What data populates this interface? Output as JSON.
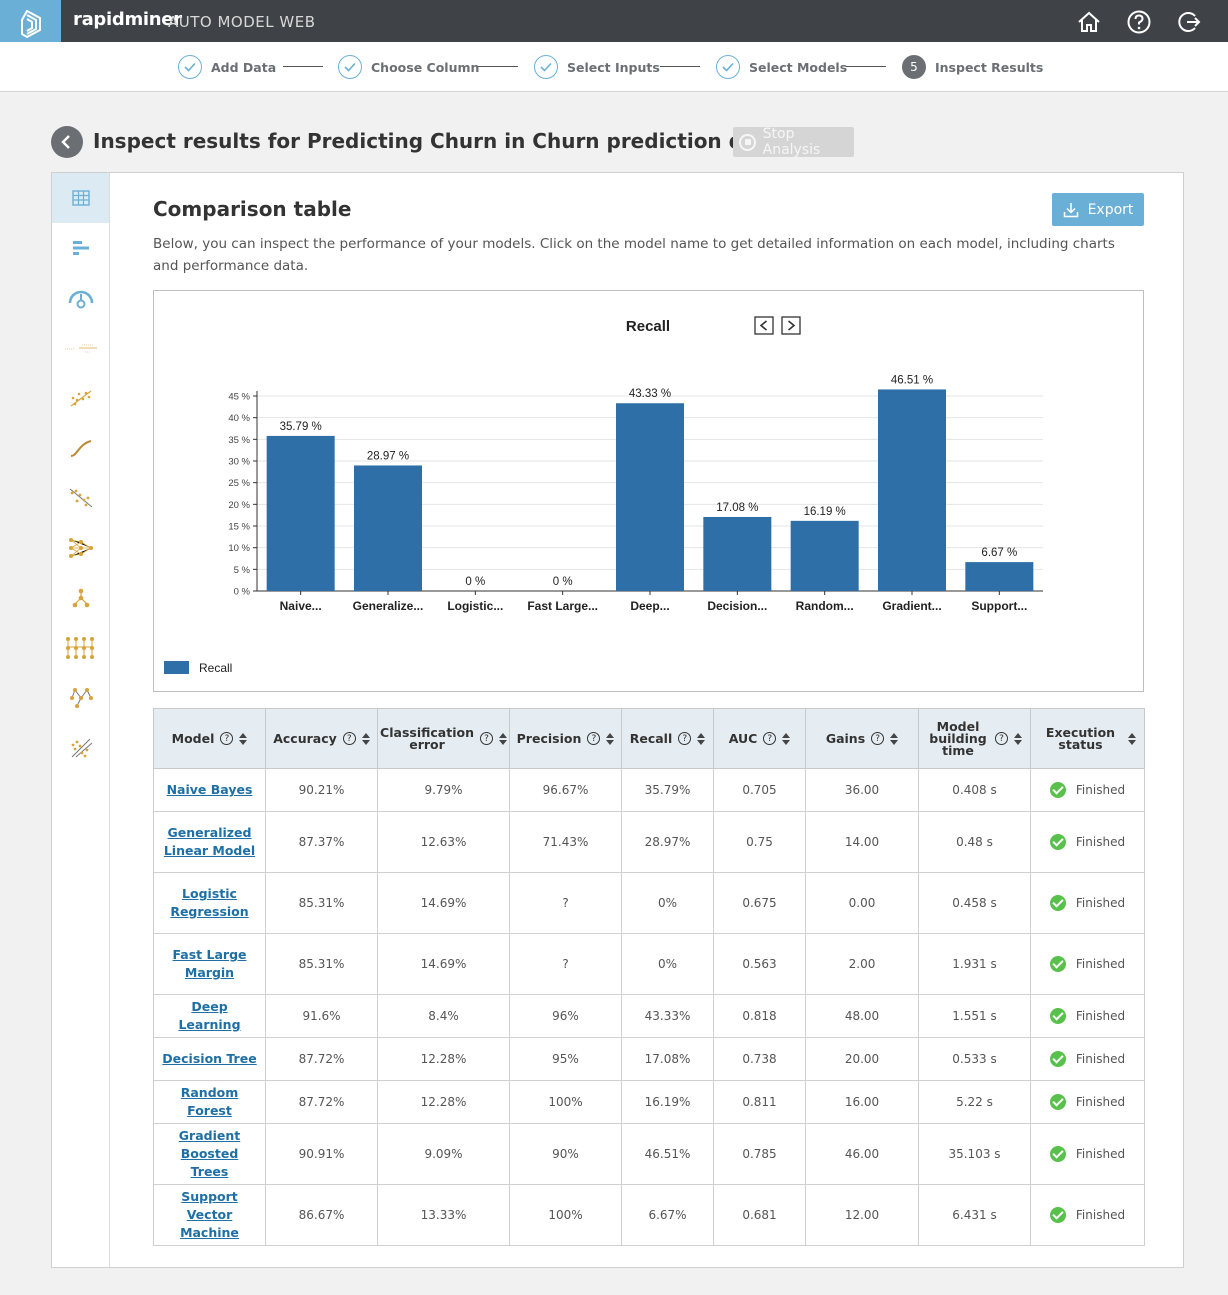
{
  "app": {
    "brand": "rapidminer",
    "product": "AUTO MODEL WEB"
  },
  "stepper": [
    {
      "label": "Add Data",
      "state": "done"
    },
    {
      "label": "Choose Column",
      "state": "done"
    },
    {
      "label": "Select Inputs",
      "state": "done"
    },
    {
      "label": "Select Models",
      "state": "done"
    },
    {
      "label": "Inspect Results",
      "state": "current",
      "number": "5"
    }
  ],
  "page": {
    "title": "Inspect results for Predicting Churn in Churn prediction dat...",
    "stop_label": "Stop Analysis"
  },
  "section": {
    "title": "Comparison table",
    "export_label": "Export",
    "description": "Below, you can inspect the performance of your models. Click on the model name to get detailed information on each model, including charts and performance data."
  },
  "chart_data": {
    "type": "bar",
    "title": "Recall",
    "categories": [
      "Naive...",
      "Generalize...",
      "Logistic...",
      "Fast Large...",
      "Deep...",
      "Decision...",
      "Random...",
      "Gradient...",
      "Support..."
    ],
    "values": [
      35.79,
      28.97,
      0,
      0,
      43.33,
      17.08,
      16.19,
      46.51,
      6.67
    ],
    "value_labels": [
      "35.79 %",
      "28.97 %",
      "0 %",
      "0 %",
      "43.33 %",
      "17.08 %",
      "16.19 %",
      "46.51 %",
      "6.67 %"
    ],
    "yticks": [
      "0 %",
      "5 %",
      "10 %",
      "15 %",
      "20 %",
      "25 %",
      "30 %",
      "35 %",
      "40 %",
      "45 %"
    ],
    "ylim": [
      0,
      45
    ],
    "legend": "Recall",
    "bar_color": "#2f6fa7"
  },
  "table": {
    "headers": [
      {
        "label": "Model",
        "help": true
      },
      {
        "label": "Accuracy",
        "help": true
      },
      {
        "label": "Classification error",
        "help": true
      },
      {
        "label": "Precision",
        "help": true
      },
      {
        "label": "Recall",
        "help": true
      },
      {
        "label": "AUC",
        "help": true
      },
      {
        "label": "Gains",
        "help": true
      },
      {
        "label": "Model building time",
        "help": true
      },
      {
        "label": "Execution status",
        "help": false
      }
    ],
    "rows": [
      {
        "model": "Naive Bayes",
        "accuracy": "90.21%",
        "error": "9.79%",
        "precision": "96.67%",
        "recall": "35.79%",
        "auc": "0.705",
        "gains": "36.00",
        "time": "0.408 s",
        "status": "Finished",
        "tall": false
      },
      {
        "model": "Generalized Linear Model",
        "accuracy": "87.37%",
        "error": "12.63%",
        "precision": "71.43%",
        "recall": "28.97%",
        "auc": "0.75",
        "gains": "14.00",
        "time": "0.48 s",
        "status": "Finished",
        "tall": true
      },
      {
        "model": "Logistic Regression",
        "accuracy": "85.31%",
        "error": "14.69%",
        "precision": "?",
        "recall": "0%",
        "auc": "0.675",
        "gains": "0.00",
        "time": "0.458 s",
        "status": "Finished",
        "tall": true
      },
      {
        "model": "Fast Large Margin",
        "accuracy": "85.31%",
        "error": "14.69%",
        "precision": "?",
        "recall": "0%",
        "auc": "0.563",
        "gains": "2.00",
        "time": "1.931 s",
        "status": "Finished",
        "tall": true
      },
      {
        "model": "Deep Learning",
        "accuracy": "91.6%",
        "error": "8.4%",
        "precision": "96%",
        "recall": "43.33%",
        "auc": "0.818",
        "gains": "48.00",
        "time": "1.551 s",
        "status": "Finished",
        "tall": false
      },
      {
        "model": "Decision Tree",
        "accuracy": "87.72%",
        "error": "12.28%",
        "precision": "95%",
        "recall": "17.08%",
        "auc": "0.738",
        "gains": "20.00",
        "time": "0.533 s",
        "status": "Finished",
        "tall": false
      },
      {
        "model": "Random Forest",
        "accuracy": "87.72%",
        "error": "12.28%",
        "precision": "100%",
        "recall": "16.19%",
        "auc": "0.811",
        "gains": "16.00",
        "time": "5.22 s",
        "status": "Finished",
        "tall": false
      },
      {
        "model": "Gradient Boosted Trees",
        "accuracy": "90.91%",
        "error": "9.09%",
        "precision": "90%",
        "recall": "46.51%",
        "auc": "0.785",
        "gains": "46.00",
        "time": "35.103 s",
        "status": "Finished",
        "tall": true
      },
      {
        "model": "Support Vector Machine",
        "accuracy": "86.67%",
        "error": "13.33%",
        "precision": "100%",
        "recall": "6.67%",
        "auc": "0.681",
        "gains": "12.00",
        "time": "6.431 s",
        "status": "Finished",
        "tall": true
      }
    ]
  },
  "colors": {
    "accent": "#6ab0d6",
    "topbar": "#3f4348",
    "link": "#1e6fa5",
    "success": "#58c14b",
    "icon_gold": "#d7a43a"
  }
}
